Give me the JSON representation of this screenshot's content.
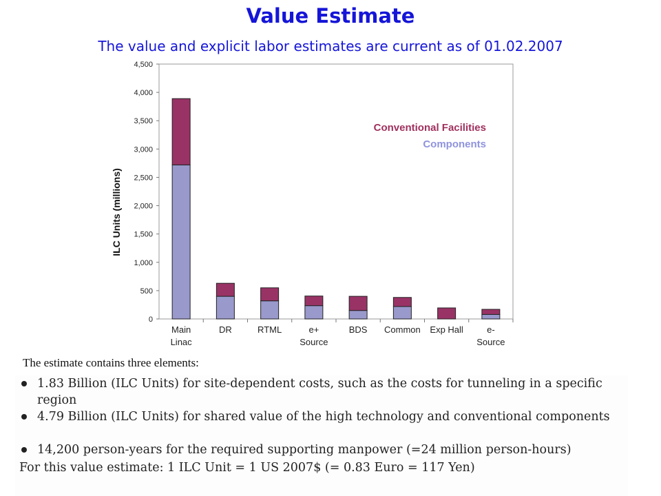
{
  "header": {
    "title": "Value Estimate",
    "subtitle": "The value and explicit labor estimates are current as of 01.02.2007"
  },
  "chart_data": {
    "type": "bar",
    "stacked": true,
    "categories": [
      [
        "Main",
        "Linac"
      ],
      [
        "DR"
      ],
      [
        "RTML"
      ],
      [
        "e+",
        "Source"
      ],
      [
        "BDS"
      ],
      [
        "Common"
      ],
      [
        "Exp Hall"
      ],
      [
        "e-",
        "Source"
      ]
    ],
    "series": [
      {
        "name": "Components",
        "color": "#9999cc",
        "values": [
          2720,
          400,
          320,
          235,
          150,
          220,
          0,
          80
        ]
      },
      {
        "name": "Conventional Facilities",
        "color": "#993366",
        "values": [
          1170,
          230,
          230,
          170,
          250,
          160,
          195,
          90
        ]
      }
    ],
    "legend_order": [
      "Conventional Facilities",
      "Components"
    ],
    "legend_position": "top-right",
    "xlabel": "",
    "ylabel": "ILC Units (millions)",
    "ylim": [
      0,
      4500
    ],
    "yticks": [
      0,
      500,
      1000,
      1500,
      2000,
      2500,
      3000,
      3500,
      4000,
      4500
    ],
    "ytick_labels": [
      "0",
      "500",
      "1,000",
      "1,500",
      "2,000",
      "2,500",
      "3,000",
      "3,500",
      "4,000",
      "4,500"
    ],
    "grid": false
  },
  "body": {
    "intro": "The estimate contains three elements:",
    "bullets": [
      "1.83 Billion (ILC Units) for site-dependent costs, such as the costs for tunneling in a specific region",
      "4.79 Billion (ILC Units) for shared value of the high technology and conventional components",
      "14,200 person-years for the required supporting manpower (=24 million person-hours)"
    ],
    "footnote": "For this value estimate: 1 ILC Unit = 1 US 2007$ (= 0.83 Euro = 117 Yen)"
  }
}
